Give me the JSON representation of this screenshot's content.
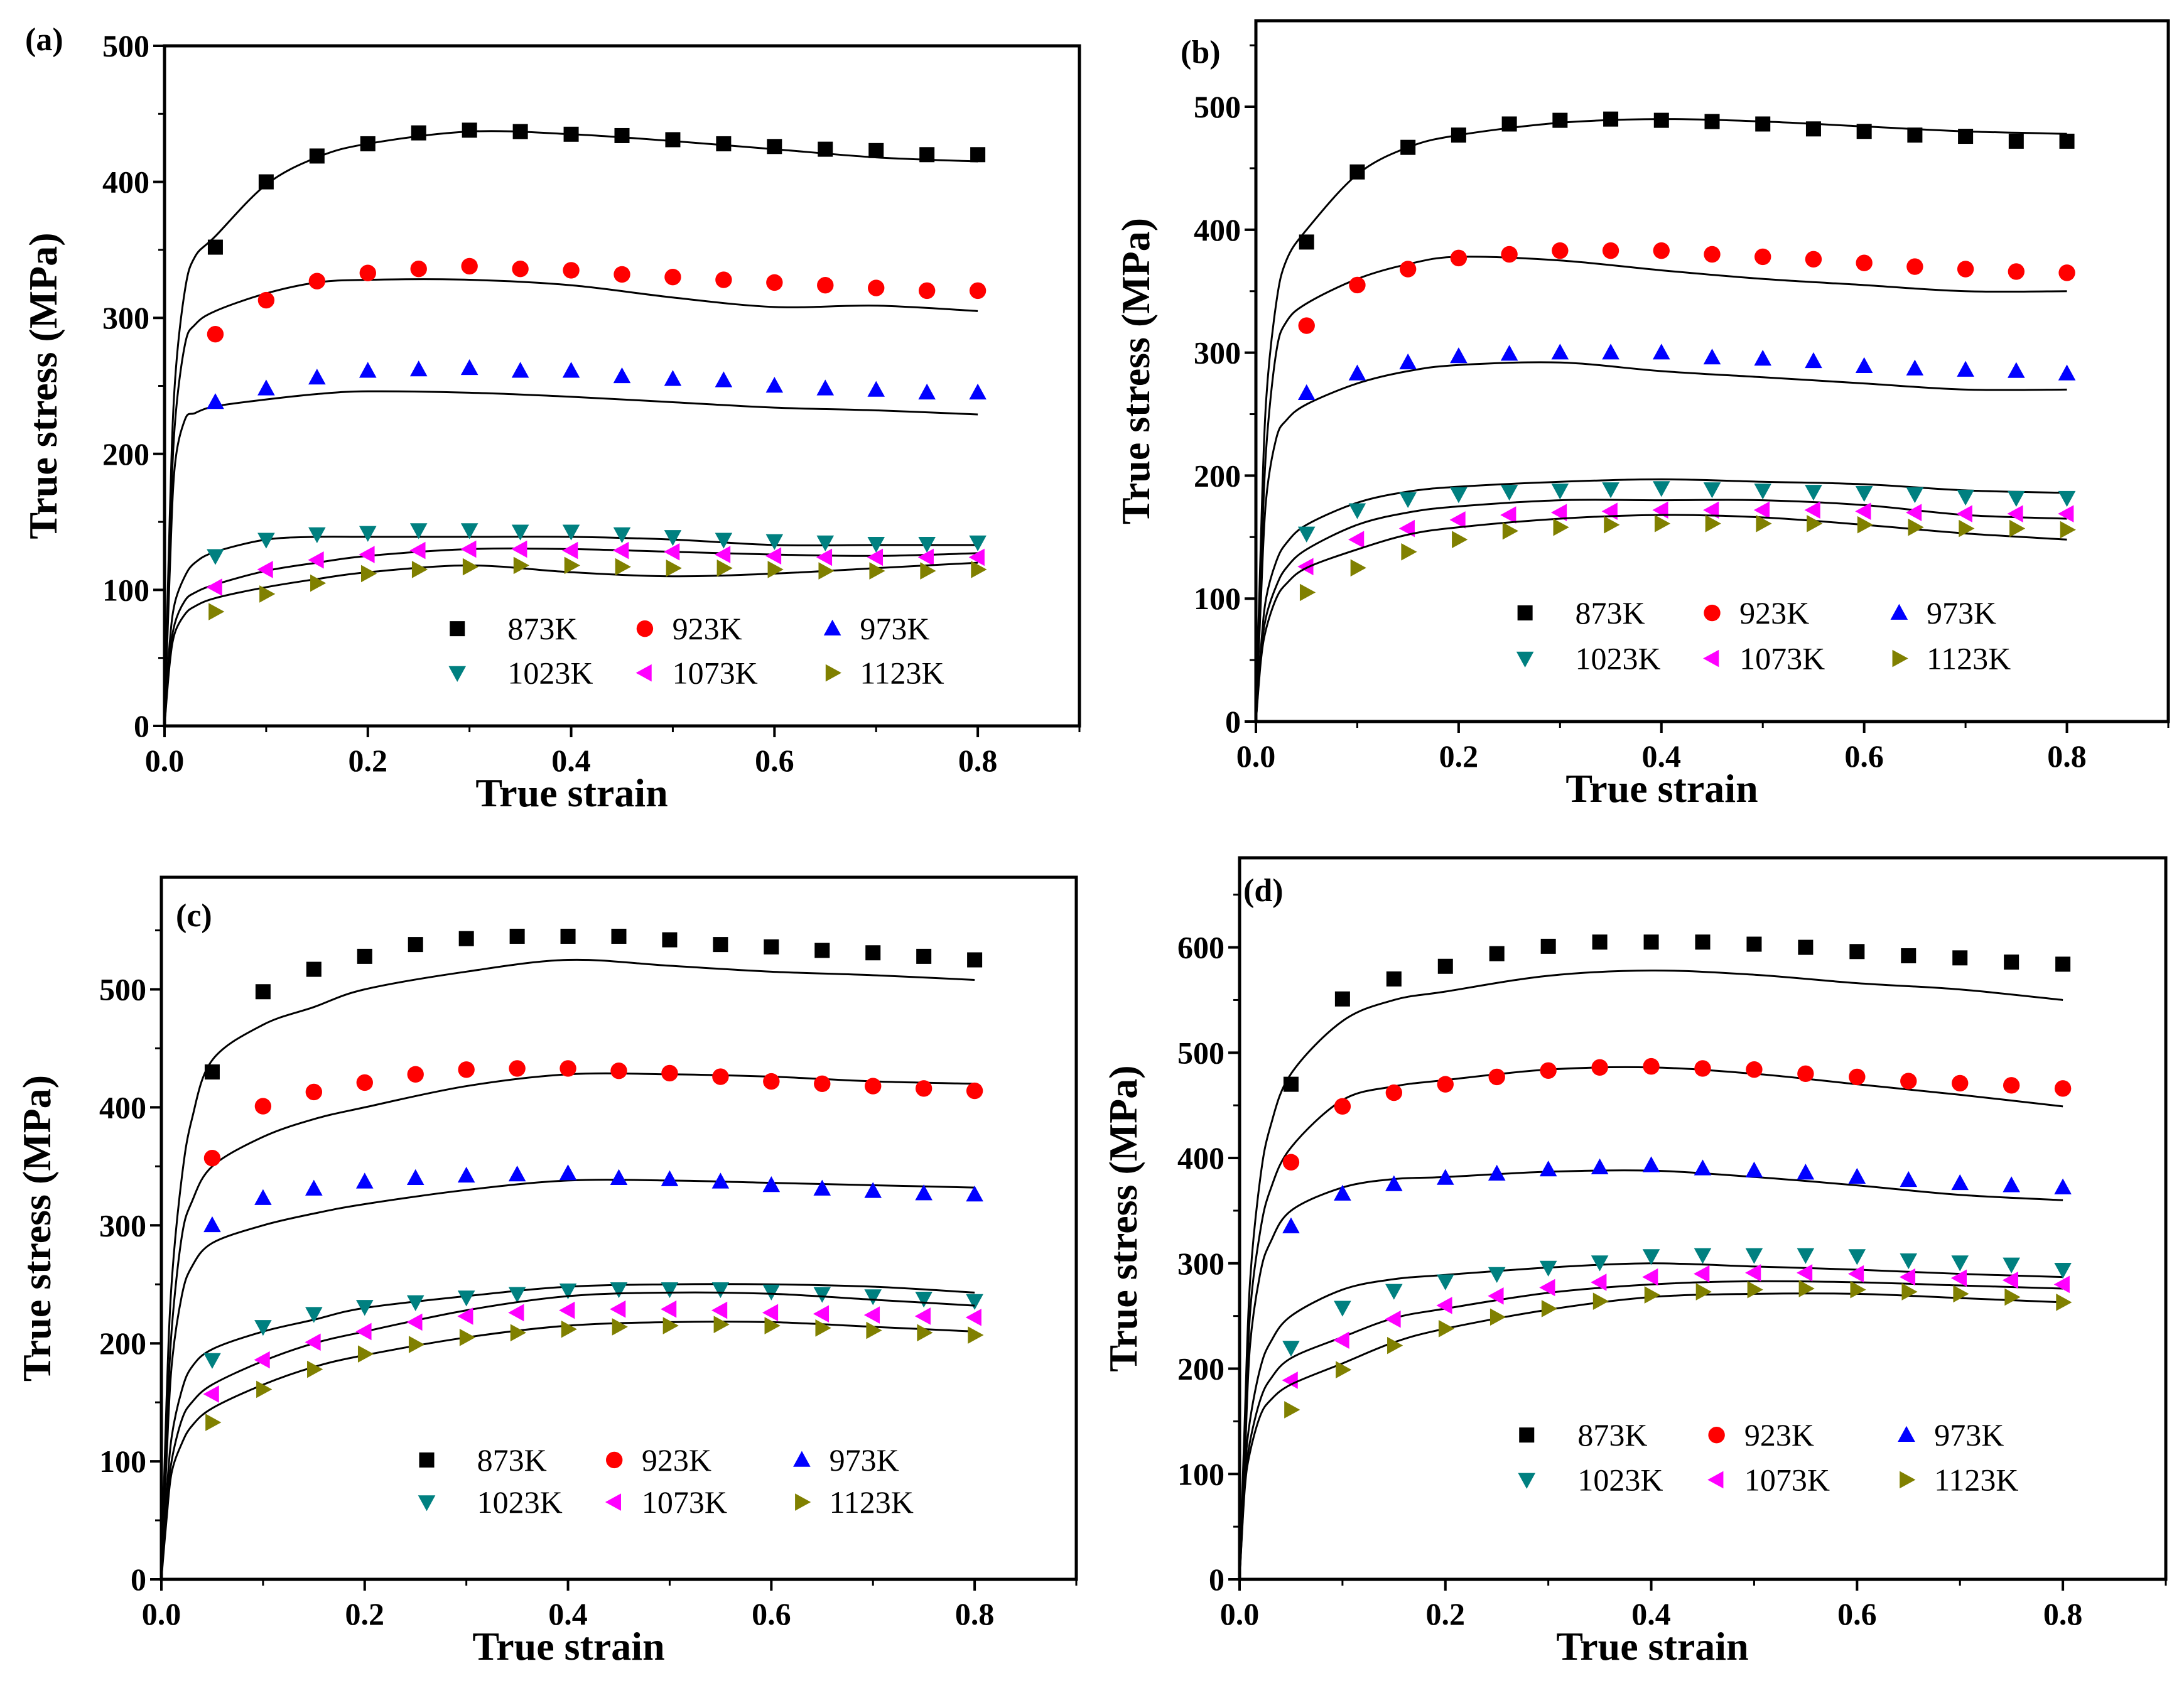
{
  "chart_data": [
    {
      "type": "scatter",
      "panel_label": "(a)",
      "xlabel": "True strain",
      "ylabel": "True stress (MPa)",
      "xlim": [
        0,
        0.9
      ],
      "ylim": [
        0,
        500
      ],
      "xticks": [
        "0.0",
        "0.2",
        "0.4",
        "0.6",
        "0.8"
      ],
      "yticks": [
        "0",
        "100",
        "200",
        "300",
        "400",
        "500"
      ],
      "legend_position": "bottom-right",
      "marker_strain": [
        0.05,
        0.1,
        0.15,
        0.2,
        0.25,
        0.3,
        0.35,
        0.4,
        0.45,
        0.5,
        0.55,
        0.6,
        0.65,
        0.7,
        0.75,
        0.8
      ],
      "curve_strain": [
        0,
        0.005,
        0.01,
        0.02,
        0.03,
        0.05,
        0.1,
        0.15,
        0.2,
        0.3,
        0.4,
        0.5,
        0.6,
        0.7,
        0.8
      ],
      "series": [
        {
          "name": "873K",
          "markers": [
            352,
            400,
            419,
            428,
            436,
            438,
            437,
            435,
            434,
            431,
            428,
            426,
            424,
            423,
            420,
            420
          ],
          "curve": [
            0,
            150,
            250,
            320,
            345,
            360,
            398,
            418,
            428,
            437,
            435,
            430,
            424,
            418,
            415
          ]
        },
        {
          "name": "923K",
          "markers": [
            288,
            313,
            327,
            333,
            336,
            338,
            336,
            335,
            332,
            330,
            328,
            326,
            324,
            322,
            320,
            320
          ],
          "curve": [
            0,
            130,
            220,
            280,
            295,
            305,
            318,
            326,
            328,
            328,
            324,
            315,
            308,
            309,
            305
          ]
        },
        {
          "name": "973K",
          "markers": [
            238,
            248,
            256,
            261,
            262,
            263,
            261,
            261,
            257,
            255,
            254,
            250,
            248,
            247,
            245,
            245
          ],
          "curve": [
            0,
            110,
            190,
            225,
            230,
            235,
            240,
            244,
            246,
            245,
            242,
            238,
            234,
            232,
            229
          ]
        },
        {
          "name": "1023K",
          "markers": [
            125,
            137,
            141,
            142,
            144,
            144,
            143,
            143,
            141,
            139,
            137,
            136,
            135,
            134,
            134,
            135
          ],
          "curve": [
            0,
            60,
            90,
            110,
            120,
            128,
            137,
            139,
            139,
            139,
            139,
            137,
            133,
            133,
            133
          ]
        },
        {
          "name": "1073K",
          "markers": [
            102,
            115,
            122,
            126,
            129,
            130,
            130,
            129,
            129,
            128,
            126,
            125,
            124,
            124,
            124,
            124
          ],
          "curve": [
            0,
            50,
            75,
            92,
            98,
            104,
            114,
            120,
            125,
            130,
            130,
            128,
            126,
            125,
            127
          ]
        },
        {
          "name": "1123K",
          "markers": [
            84,
            97,
            105,
            112,
            115,
            117,
            118,
            118,
            117,
            116,
            116,
            115,
            114,
            114,
            114,
            115
          ],
          "curve": [
            0,
            45,
            68,
            82,
            88,
            94,
            102,
            108,
            113,
            118,
            113,
            110,
            112,
            116,
            120
          ]
        }
      ]
    },
    {
      "type": "scatter",
      "panel_label": "(b)",
      "xlabel": "True strain",
      "ylabel": "True stress (MPa)",
      "xlim": [
        0,
        0.9
      ],
      "ylim": [
        0,
        570
      ],
      "xticks": [
        "0.0",
        "0.2",
        "0.4",
        "0.6",
        "0.8"
      ],
      "yticks": [
        "0",
        "100",
        "200",
        "300",
        "400",
        "500"
      ],
      "legend_position": "bottom-right",
      "marker_strain": [
        0.05,
        0.1,
        0.15,
        0.2,
        0.25,
        0.3,
        0.35,
        0.4,
        0.45,
        0.5,
        0.55,
        0.6,
        0.65,
        0.7,
        0.75,
        0.8
      ],
      "curve_strain": [
        0,
        0.005,
        0.01,
        0.02,
        0.03,
        0.05,
        0.1,
        0.15,
        0.2,
        0.3,
        0.4,
        0.5,
        0.6,
        0.7,
        0.8
      ],
      "series": [
        {
          "name": "873K",
          "markers": [
            390,
            447,
            467,
            477,
            486,
            489,
            490,
            489,
            488,
            486,
            482,
            480,
            477,
            476,
            472,
            472
          ],
          "curve": [
            0,
            150,
            260,
            340,
            375,
            400,
            445,
            467,
            477,
            487,
            490,
            488,
            484,
            480,
            478
          ]
        },
        {
          "name": "923K",
          "markers": [
            322,
            355,
            368,
            377,
            380,
            383,
            383,
            383,
            380,
            378,
            376,
            373,
            370,
            368,
            366,
            365
          ],
          "curve": [
            0,
            120,
            220,
            300,
            325,
            340,
            360,
            372,
            378,
            375,
            367,
            360,
            355,
            350,
            350
          ]
        },
        {
          "name": "973K",
          "markers": [
            267,
            283,
            292,
            297,
            299,
            300,
            300,
            300,
            296,
            295,
            293,
            289,
            287,
            286,
            285,
            283
          ],
          "curve": [
            0,
            100,
            180,
            230,
            245,
            258,
            275,
            285,
            290,
            292,
            285,
            280,
            275,
            270,
            270
          ]
        },
        {
          "name": "1023K",
          "markers": [
            153,
            172,
            181,
            185,
            187,
            188,
            189,
            190,
            189,
            188,
            187,
            186,
            185,
            183,
            182,
            182
          ],
          "curve": [
            0,
            60,
            100,
            130,
            145,
            160,
            178,
            187,
            191,
            195,
            197,
            195,
            193,
            188,
            186
          ]
        },
        {
          "name": "1073K",
          "markers": [
            126,
            148,
            157,
            164,
            168,
            170,
            171,
            172,
            172,
            172,
            172,
            171,
            170,
            169,
            169,
            169
          ],
          "curve": [
            0,
            55,
            85,
            110,
            125,
            140,
            160,
            170,
            175,
            180,
            180,
            180,
            176,
            168,
            165
          ]
        },
        {
          "name": "1123K",
          "markers": [
            105,
            125,
            138,
            148,
            155,
            158,
            160,
            161,
            161,
            161,
            161,
            160,
            158,
            157,
            157,
            156
          ],
          "curve": [
            0,
            50,
            75,
            100,
            112,
            125,
            140,
            152,
            158,
            165,
            168,
            166,
            160,
            153,
            148
          ]
        }
      ]
    },
    {
      "type": "scatter",
      "panel_label": "(c)",
      "xlabel": "True strain",
      "ylabel": "True stress (MPa)",
      "xlim": [
        0,
        0.9
      ],
      "ylim": [
        0,
        595
      ],
      "xticks": [
        "0.0",
        "0.2",
        "0.4",
        "0.6",
        "0.8"
      ],
      "yticks": [
        "0",
        "100",
        "200",
        "300",
        "400",
        "500"
      ],
      "legend_position": "bottom-right",
      "marker_strain": [
        0.05,
        0.1,
        0.15,
        0.2,
        0.25,
        0.3,
        0.35,
        0.4,
        0.45,
        0.5,
        0.55,
        0.6,
        0.65,
        0.7,
        0.75,
        0.8
      ],
      "curve_strain": [
        0,
        0.005,
        0.01,
        0.02,
        0.03,
        0.05,
        0.1,
        0.15,
        0.2,
        0.3,
        0.4,
        0.5,
        0.6,
        0.7,
        0.8
      ],
      "series": [
        {
          "name": "873K",
          "markers": [
            430,
            498,
            517,
            528,
            538,
            543,
            545,
            545,
            545,
            542,
            538,
            536,
            533,
            531,
            528,
            525
          ],
          "curve": [
            0,
            150,
            250,
            340,
            390,
            440,
            470,
            485,
            500,
            515,
            525,
            520,
            515,
            512,
            508
          ]
        },
        {
          "name": "923K",
          "markers": [
            357,
            401,
            413,
            421,
            428,
            432,
            433,
            433,
            431,
            429,
            426,
            422,
            420,
            418,
            416,
            414
          ],
          "curve": [
            0,
            120,
            210,
            290,
            320,
            350,
            375,
            390,
            400,
            418,
            428,
            428,
            426,
            422,
            420
          ]
        },
        {
          "name": "973K",
          "markers": [
            300,
            323,
            331,
            337,
            340,
            342,
            343,
            344,
            340,
            339,
            337,
            334,
            331,
            329,
            327,
            326
          ],
          "curve": [
            0,
            100,
            180,
            240,
            265,
            285,
            300,
            310,
            318,
            330,
            338,
            338,
            336,
            334,
            332
          ]
        },
        {
          "name": "1023K",
          "markers": [
            186,
            214,
            225,
            231,
            235,
            239,
            242,
            245,
            246,
            246,
            246,
            244,
            242,
            240,
            238,
            236
          ],
          "curve": [
            0,
            70,
            120,
            160,
            180,
            195,
            210,
            220,
            230,
            240,
            248,
            250,
            250,
            248,
            243
          ]
        },
        {
          "name": "1073K",
          "markers": [
            157,
            186,
            201,
            210,
            218,
            223,
            226,
            228,
            229,
            229,
            228,
            226,
            225,
            224,
            223,
            222
          ],
          "curve": [
            0,
            60,
            100,
            135,
            150,
            165,
            185,
            200,
            210,
            228,
            240,
            243,
            242,
            237,
            232
          ]
        },
        {
          "name": "1123K",
          "markers": [
            133,
            161,
            178,
            191,
            199,
            205,
            209,
            212,
            214,
            215,
            216,
            215,
            213,
            211,
            209,
            207
          ],
          "curve": [
            0,
            50,
            90,
            115,
            130,
            145,
            165,
            180,
            190,
            205,
            215,
            218,
            218,
            214,
            210
          ]
        }
      ]
    },
    {
      "type": "scatter",
      "panel_label": "(d)",
      "xlabel": "True strain",
      "ylabel": "True stress (MPa)",
      "xlim": [
        0,
        0.9
      ],
      "ylim": [
        0,
        685
      ],
      "xticks": [
        "0.0",
        "0.2",
        "0.4",
        "0.6",
        "0.8"
      ],
      "yticks": [
        "0",
        "100",
        "200",
        "300",
        "400",
        "500",
        "600"
      ],
      "legend_position": "bottom-right",
      "marker_strain": [
        0.05,
        0.1,
        0.15,
        0.2,
        0.25,
        0.3,
        0.35,
        0.4,
        0.45,
        0.5,
        0.55,
        0.6,
        0.65,
        0.7,
        0.75,
        0.8
      ],
      "curve_strain": [
        0,
        0.005,
        0.01,
        0.02,
        0.03,
        0.05,
        0.1,
        0.15,
        0.2,
        0.3,
        0.4,
        0.5,
        0.6,
        0.7,
        0.8
      ],
      "series": [
        {
          "name": "873K",
          "markers": [
            470,
            551,
            570,
            582,
            594,
            601,
            605,
            605,
            605,
            603,
            600,
            596,
            592,
            590,
            586,
            584
          ],
          "curve": [
            0,
            150,
            280,
            380,
            430,
            480,
            530,
            550,
            558,
            573,
            578,
            574,
            566,
            560,
            550
          ]
        },
        {
          "name": "923K",
          "markers": [
            396,
            449,
            462,
            470,
            477,
            483,
            486,
            487,
            485,
            484,
            480,
            477,
            473,
            471,
            469,
            466
          ],
          "curve": [
            0,
            120,
            250,
            330,
            370,
            410,
            455,
            468,
            474,
            484,
            486,
            480,
            470,
            460,
            449
          ]
        },
        {
          "name": "973K",
          "markers": [
            335,
            366,
            375,
            381,
            385,
            389,
            391,
            393,
            390,
            388,
            386,
            382,
            379,
            376,
            374,
            372
          ],
          "curve": [
            0,
            110,
            220,
            290,
            320,
            350,
            372,
            380,
            382,
            387,
            388,
            382,
            374,
            365,
            360
          ]
        },
        {
          "name": "1023K",
          "markers": [
            220,
            258,
            274,
            283,
            290,
            296,
            301,
            307,
            308,
            308,
            308,
            307,
            303,
            301,
            299,
            294
          ],
          "curve": [
            0,
            100,
            150,
            200,
            225,
            250,
            275,
            285,
            289,
            296,
            300,
            297,
            294,
            290,
            287
          ]
        },
        {
          "name": "1073K",
          "markers": [
            189,
            227,
            247,
            260,
            269,
            277,
            282,
            287,
            290,
            291,
            291,
            290,
            287,
            286,
            284,
            280
          ],
          "curve": [
            0,
            90,
            130,
            170,
            190,
            210,
            230,
            248,
            257,
            272,
            280,
            283,
            282,
            279,
            276
          ]
        },
        {
          "name": "1123K",
          "markers": [
            161,
            199,
            222,
            238,
            249,
            257,
            264,
            270,
            273,
            275,
            276,
            275,
            273,
            271,
            268,
            263
          ],
          "curve": [
            0,
            85,
            120,
            155,
            170,
            185,
            205,
            225,
            238,
            256,
            268,
            271,
            271,
            267,
            263
          ]
        }
      ]
    }
  ],
  "series_style": [
    {
      "marker": "square",
      "color": "#000000"
    },
    {
      "marker": "circle",
      "color": "#ff0000"
    },
    {
      "marker": "triangle-up",
      "color": "#0000ff"
    },
    {
      "marker": "triangle-down",
      "color": "#008080"
    },
    {
      "marker": "triangle-left",
      "color": "#ff00ff"
    },
    {
      "marker": "triangle-right",
      "color": "#808000"
    }
  ]
}
